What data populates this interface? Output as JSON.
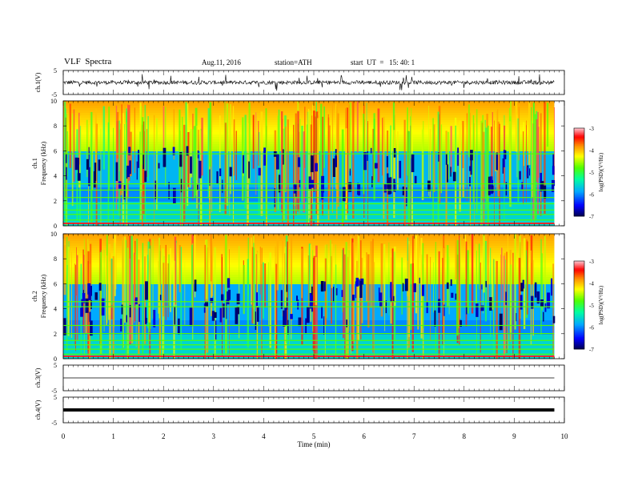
{
  "header": {
    "title": "VLF  Spectra",
    "date": "Aug.11, 2016",
    "station": "station=ATH",
    "start": "start  UT  =   15: 40: 1"
  },
  "chart_data": {
    "type": "heatmap",
    "panels": [
      {
        "id": "ch1_waveform",
        "ylabel": "ch.1(V)",
        "ylim": [
          -5,
          5
        ],
        "ticks": [
          "5",
          "-5"
        ],
        "kind": "line"
      },
      {
        "id": "ch1_spectrogram",
        "ylabel": "ch.1\nFrequency (kHz)",
        "ylim": [
          0,
          10
        ],
        "ticks": [
          "0",
          "2",
          "4",
          "6",
          "8",
          "10"
        ],
        "kind": "heatmap",
        "colorbar": {
          "label": "log(PSD)(V²/Hz)",
          "range": [
            -7,
            -3
          ],
          "ticks": [
            "-3",
            "-4",
            "-5",
            "-6",
            "-7"
          ]
        }
      },
      {
        "id": "ch2_spectrogram",
        "ylabel": "ch.2\nFrequency (kHz)",
        "ylim": [
          0,
          10
        ],
        "ticks": [
          "0",
          "2",
          "4",
          "6",
          "8",
          "10"
        ],
        "kind": "heatmap",
        "colorbar": {
          "label": "log(PSD)(V²/Hz)",
          "range": [
            -7,
            -3
          ],
          "ticks": [
            "-3",
            "-4",
            "-5",
            "-6",
            "-7"
          ]
        }
      },
      {
        "id": "ch3_waveform",
        "ylabel": "ch.3(V)",
        "ylim": [
          -5,
          5
        ],
        "ticks": [
          "5",
          "-5"
        ],
        "kind": "flat",
        "value": 0
      },
      {
        "id": "ch4_waveform",
        "ylabel": "ch.4(V)",
        "ylim": [
          -5,
          5
        ],
        "ticks": [
          "5",
          "-5"
        ],
        "kind": "flat",
        "value": 0
      }
    ],
    "xlabel": "Time  (min)",
    "xlim": [
      0,
      10
    ],
    "xticks": [
      "0",
      "1",
      "2",
      "3",
      "4",
      "5",
      "6",
      "7",
      "8",
      "9",
      "10"
    ],
    "data_end_min": 9.8
  }
}
